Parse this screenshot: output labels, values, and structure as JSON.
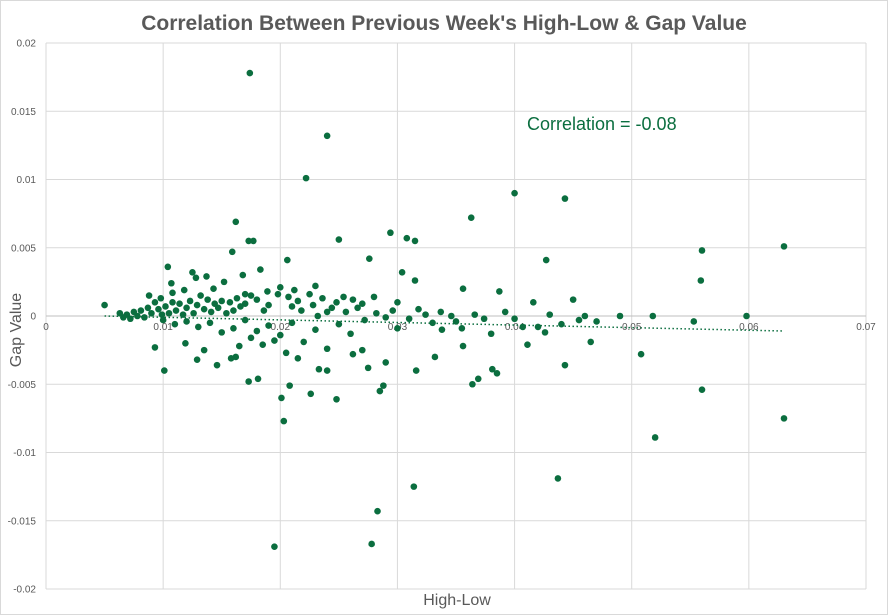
{
  "chart_data": {
    "type": "scatter",
    "title": "Correlation Between Previous Week's High-Low & Gap Value",
    "xlabel": "High-Low",
    "ylabel": "Gap Value",
    "annotation": "Correlation = -0.08",
    "xlim": [
      0,
      0.07
    ],
    "ylim": [
      -0.02,
      0.02
    ],
    "x_ticks": [
      "0",
      "0.01",
      "0.02",
      "0.03",
      "0.04",
      "0.05",
      "0.06",
      "0.07"
    ],
    "y_ticks": [
      "0.02",
      "0.015",
      "0.01",
      "0.005",
      "0",
      "-0.005",
      "-0.01",
      "-0.015",
      "-0.02"
    ],
    "grid": true,
    "trendline": {
      "style": "dotted linear",
      "x": [
        0.005,
        0.063
      ],
      "y": [
        0.0,
        -0.0011
      ]
    },
    "colors": {
      "marker": "#0b6e3f",
      "trendline": "#0b6e3f",
      "grid": "#d9d9d9",
      "text": "#595959"
    },
    "series": [
      {
        "points": [
          [
            0.0174,
            0.0178
          ],
          [
            0.024,
            0.0132
          ],
          [
            0.0222,
            0.0101
          ],
          [
            0.04,
            0.009
          ],
          [
            0.0443,
            0.0086
          ],
          [
            0.0363,
            0.0072
          ],
          [
            0.0162,
            0.0069
          ],
          [
            0.0294,
            0.0061
          ],
          [
            0.0308,
            0.0057
          ],
          [
            0.0315,
            0.0055
          ],
          [
            0.0173,
            0.0055
          ],
          [
            0.0177,
            0.0055
          ],
          [
            0.025,
            0.0056
          ],
          [
            0.056,
            0.0048
          ],
          [
            0.063,
            0.0051
          ],
          [
            0.0159,
            0.0047
          ],
          [
            0.0427,
            0.0041
          ],
          [
            0.0206,
            0.0041
          ],
          [
            0.0276,
            0.0042
          ],
          [
            0.0559,
            0.0026
          ],
          [
            0.0104,
            0.0036
          ],
          [
            0.0125,
            0.0032
          ],
          [
            0.0137,
            0.0029
          ],
          [
            0.0304,
            0.0032
          ],
          [
            0.0183,
            0.0034
          ],
          [
            0.0315,
            0.0026
          ],
          [
            0.0107,
            0.0024
          ],
          [
            0.017,
            0.0016
          ],
          [
            0.023,
            0.0022
          ],
          [
            0.0356,
            0.002
          ],
          [
            0.0387,
            0.0018
          ],
          [
            0.045,
            0.0012
          ],
          [
            0.0416,
            0.001
          ],
          [
            0.005,
            0.0008
          ],
          [
            0.0598,
            0.0
          ],
          [
            0.049,
            0.0
          ],
          [
            0.0518,
            0.0
          ],
          [
            0.046,
            0.0
          ],
          [
            0.0553,
            -0.0004
          ],
          [
            0.047,
            -0.0004
          ],
          [
            0.044,
            -0.0006
          ],
          [
            0.042,
            -0.0008
          ],
          [
            0.0426,
            -0.0012
          ],
          [
            0.038,
            -0.0013
          ],
          [
            0.0411,
            -0.0021
          ],
          [
            0.0465,
            -0.0019
          ],
          [
            0.0508,
            -0.0028
          ],
          [
            0.0443,
            -0.0036
          ],
          [
            0.0381,
            -0.0039
          ],
          [
            0.0385,
            -0.0042
          ],
          [
            0.0369,
            -0.0046
          ],
          [
            0.0364,
            -0.005
          ],
          [
            0.0332,
            -0.003
          ],
          [
            0.0316,
            -0.004
          ],
          [
            0.029,
            -0.0034
          ],
          [
            0.0288,
            -0.0051
          ],
          [
            0.0285,
            -0.0055
          ],
          [
            0.0275,
            -0.0038
          ],
          [
            0.0262,
            -0.0028
          ],
          [
            0.0226,
            -0.0057
          ],
          [
            0.0248,
            -0.0061
          ],
          [
            0.0208,
            -0.0051
          ],
          [
            0.0201,
            -0.006
          ],
          [
            0.0203,
            -0.0077
          ],
          [
            0.056,
            -0.0054
          ],
          [
            0.052,
            -0.0089
          ],
          [
            0.063,
            -0.0075
          ],
          [
            0.0437,
            -0.0119
          ],
          [
            0.0314,
            -0.0125
          ],
          [
            0.0283,
            -0.0143
          ],
          [
            0.0278,
            -0.0167
          ],
          [
            0.0195,
            -0.0169
          ],
          [
            0.0101,
            -0.004
          ],
          [
            0.0162,
            -0.003
          ],
          [
            0.0173,
            -0.0048
          ],
          [
            0.0181,
            -0.0046
          ],
          [
            0.0129,
            -0.0032
          ],
          [
            0.0093,
            -0.0023
          ],
          [
            0.0233,
            -0.0039
          ],
          [
            0.024,
            -0.004
          ],
          [
            0.027,
            -0.0025
          ],
          [
            0.0356,
            -0.0022
          ],
          [
            0.0338,
            -0.001
          ],
          [
            0.033,
            -0.0005
          ],
          [
            0.04,
            -0.0002
          ],
          [
            0.0407,
            -0.0008
          ],
          [
            0.0355,
            -0.0009
          ],
          [
            0.0346,
            0.0
          ],
          [
            0.0318,
            0.0005
          ],
          [
            0.03,
            0.001
          ],
          [
            0.03,
            -0.0009
          ],
          [
            0.029,
            -0.0001
          ],
          [
            0.027,
            0.0009
          ],
          [
            0.028,
            0.0014
          ],
          [
            0.0262,
            0.0012
          ],
          [
            0.0254,
            0.0014
          ],
          [
            0.0248,
            0.001
          ],
          [
            0.024,
            0.0003
          ],
          [
            0.0232,
            0.0
          ],
          [
            0.0225,
            0.0016
          ],
          [
            0.0215,
            0.0011
          ],
          [
            0.021,
            0.0007
          ],
          [
            0.02,
            0.0021
          ],
          [
            0.019,
            0.0008
          ],
          [
            0.0186,
            0.0004
          ],
          [
            0.018,
            0.0012
          ],
          [
            0.0175,
            0.0015
          ],
          [
            0.017,
            0.0009
          ],
          [
            0.0166,
            0.0007
          ],
          [
            0.0163,
            0.0013
          ],
          [
            0.016,
            0.0004
          ],
          [
            0.0157,
            0.001
          ],
          [
            0.0154,
            0.0002
          ],
          [
            0.015,
            0.0011
          ],
          [
            0.0147,
            0.0006
          ],
          [
            0.0144,
            0.0009
          ],
          [
            0.0141,
            0.0003
          ],
          [
            0.0138,
            0.0012
          ],
          [
            0.0135,
            0.0005
          ],
          [
            0.0132,
            0.0015
          ],
          [
            0.0129,
            0.0008
          ],
          [
            0.0126,
            0.0002
          ],
          [
            0.0123,
            0.0011
          ],
          [
            0.012,
            0.0006
          ],
          [
            0.0117,
            0.0001
          ],
          [
            0.0114,
            0.0009
          ],
          [
            0.0111,
            0.0004
          ],
          [
            0.0108,
            0.001
          ],
          [
            0.0105,
            0.0002
          ],
          [
            0.0102,
            0.0007
          ],
          [
            0.0099,
            0.0001
          ],
          [
            0.0096,
            0.0005
          ],
          [
            0.0093,
            0.001
          ],
          [
            0.009,
            0.0002
          ],
          [
            0.0087,
            0.0006
          ],
          [
            0.0084,
            -0.0001
          ],
          [
            0.0081,
            0.0004
          ],
          [
            0.0078,
            0.0
          ],
          [
            0.0075,
            0.0003
          ],
          [
            0.0072,
            -0.0002
          ],
          [
            0.0069,
            0.0001
          ],
          [
            0.0066,
            -0.0001
          ],
          [
            0.0063,
            0.0002
          ],
          [
            0.01,
            -0.0003
          ],
          [
            0.011,
            -0.0006
          ],
          [
            0.012,
            -0.0004
          ],
          [
            0.013,
            -0.0008
          ],
          [
            0.014,
            -0.0005
          ],
          [
            0.015,
            -0.0012
          ],
          [
            0.016,
            -0.0009
          ],
          [
            0.017,
            -0.0003
          ],
          [
            0.018,
            -0.0011
          ],
          [
            0.019,
            -0.0007
          ],
          [
            0.02,
            -0.0014
          ],
          [
            0.021,
            -0.0005
          ],
          [
            0.022,
            -0.0019
          ],
          [
            0.023,
            -0.001
          ],
          [
            0.024,
            -0.0024
          ],
          [
            0.025,
            -0.0006
          ],
          [
            0.026,
            -0.0013
          ],
          [
            0.0119,
            -0.002
          ],
          [
            0.0135,
            -0.0025
          ],
          [
            0.0146,
            -0.0036
          ],
          [
            0.0158,
            -0.0031
          ],
          [
            0.0165,
            -0.0022
          ],
          [
            0.0175,
            -0.0016
          ],
          [
            0.0185,
            -0.0021
          ],
          [
            0.0195,
            -0.0018
          ],
          [
            0.0205,
            -0.0027
          ],
          [
            0.0215,
            -0.0031
          ],
          [
            0.0143,
            0.002
          ],
          [
            0.0152,
            0.0025
          ],
          [
            0.0168,
            0.003
          ],
          [
            0.0128,
            0.0028
          ],
          [
            0.0118,
            0.0019
          ],
          [
            0.0108,
            0.0017
          ],
          [
            0.0098,
            0.0013
          ],
          [
            0.0088,
            0.0015
          ],
          [
            0.0189,
            0.0018
          ],
          [
            0.0198,
            0.0016
          ],
          [
            0.0207,
            0.0014
          ],
          [
            0.0212,
            0.0019
          ],
          [
            0.0218,
            0.0004
          ],
          [
            0.0228,
            0.0008
          ],
          [
            0.0236,
            0.0013
          ],
          [
            0.0244,
            0.0006
          ],
          [
            0.0256,
            0.0003
          ],
          [
            0.0266,
            0.0006
          ],
          [
            0.0272,
            -0.0003
          ],
          [
            0.0282,
            0.0002
          ],
          [
            0.0296,
            0.0004
          ],
          [
            0.031,
            -0.0002
          ],
          [
            0.0324,
            0.0001
          ],
          [
            0.0337,
            0.0003
          ],
          [
            0.035,
            -0.0004
          ],
          [
            0.0366,
            0.0001
          ],
          [
            0.0374,
            -0.0002
          ],
          [
            0.0392,
            0.0003
          ],
          [
            0.043,
            0.0001
          ],
          [
            0.0455,
            -0.0003
          ]
        ]
      }
    ]
  }
}
